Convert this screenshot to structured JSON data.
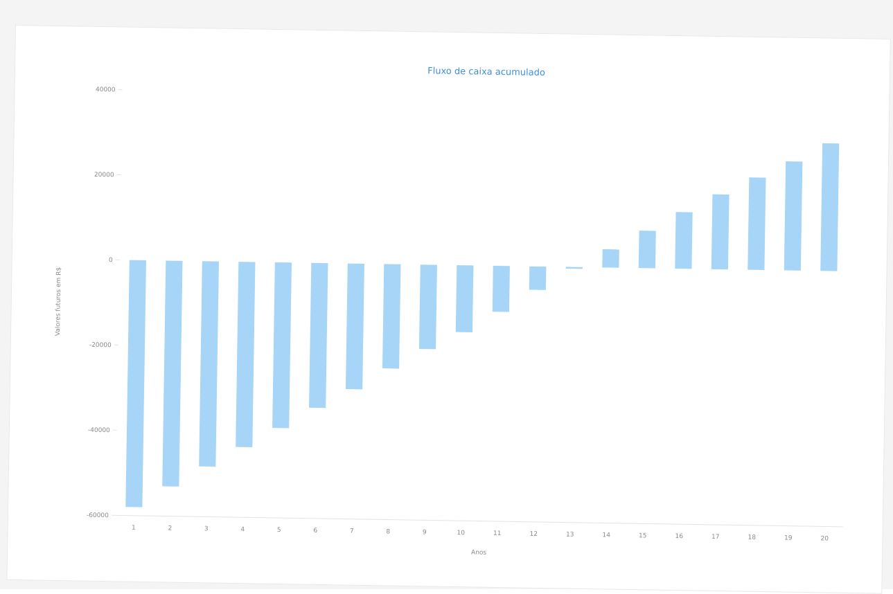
{
  "chart_data": {
    "type": "bar",
    "title": "Fluxo de caixa acumulado",
    "xlabel": "Anos",
    "ylabel": "Valores futuros em R$",
    "ylim": [
      -60000,
      40000
    ],
    "yticks": [
      -60000,
      -40000,
      -20000,
      0,
      20000,
      40000
    ],
    "categories": [
      "1",
      "2",
      "3",
      "4",
      "5",
      "6",
      "7",
      "8",
      "9",
      "10",
      "11",
      "12",
      "13",
      "14",
      "15",
      "16",
      "17",
      "18",
      "19",
      "20"
    ],
    "values": [
      -58000,
      -53000,
      -48200,
      -43500,
      -38900,
      -34000,
      -29500,
      -24500,
      -19800,
      -15700,
      -10800,
      -5500,
      -400,
      4300,
      8800,
      13300,
      17600,
      21700,
      25600,
      30000
    ],
    "grid": false,
    "colors": {
      "bar": "#a7d5f7",
      "title": "#3f8fd6",
      "axis": "#e3e3e3"
    }
  }
}
